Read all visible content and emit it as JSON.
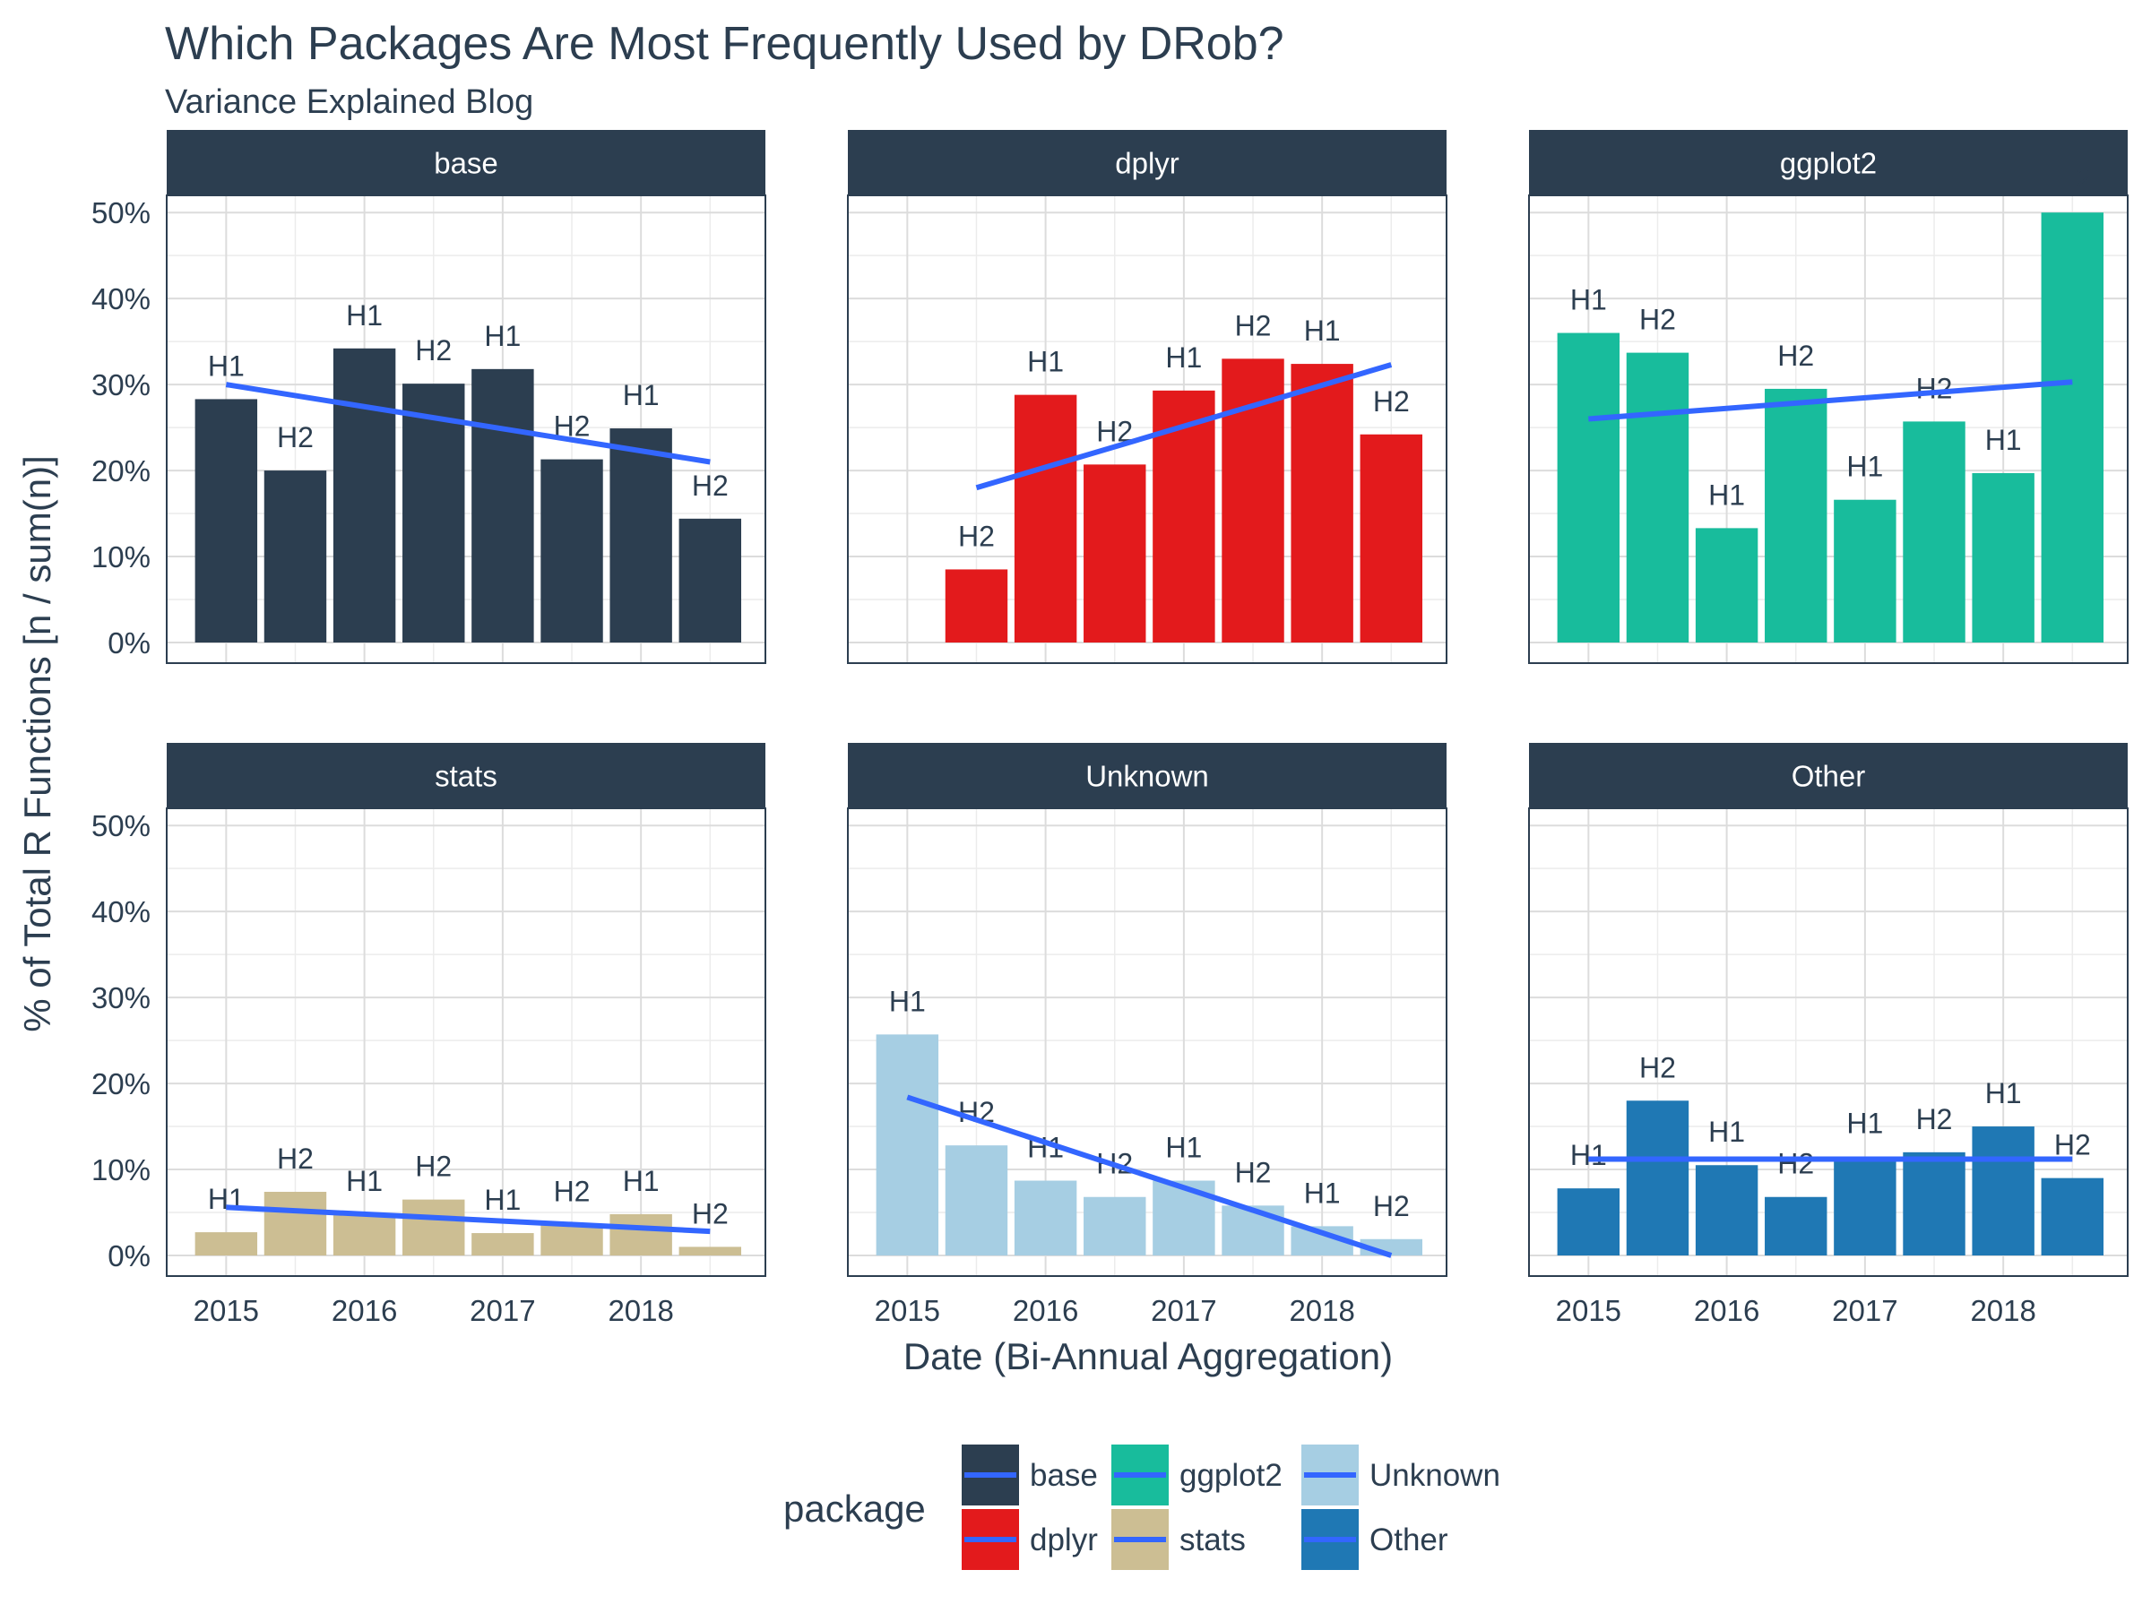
{
  "chart_data": {
    "type": "bar",
    "title": "Which Packages Are Most Frequently Used by DRob?",
    "subtitle": "Variance Explained Blog",
    "xlabel": "Date (Bi-Annual Aggregation)",
    "ylabel": "% of Total R Functions [n / sum(n)]",
    "ylim": [
      0,
      0.52
    ],
    "y_ticks": [
      0,
      0.1,
      0.2,
      0.3,
      0.4,
      0.5
    ],
    "y_tick_labels": [
      "0%",
      "10%",
      "20%",
      "30%",
      "40%",
      "50%"
    ],
    "x_ticks": [
      2015,
      2016,
      2017,
      2018
    ],
    "x_tick_labels": [
      "2015",
      "2016",
      "2017",
      "2018"
    ],
    "xlim": [
      2014.57,
      2018.9
    ],
    "grid": true,
    "categories": [
      "2015 H1",
      "2015 H2",
      "2016 H1",
      "2016 H2",
      "2017 H1",
      "2017 H2",
      "2018 H1",
      "2018 H2"
    ],
    "x": [
      2015.0,
      2015.5,
      2016.0,
      2016.5,
      2017.0,
      2017.5,
      2018.0,
      2018.5
    ],
    "half_labels": [
      "H1",
      "H2",
      "H1",
      "H2",
      "H1",
      "H2",
      "H1",
      "H2"
    ],
    "bar_width": 0.45,
    "trend_color": "#3366ff",
    "series": [
      {
        "name": "base",
        "color": "#2c3e50",
        "values": [
          0.283,
          0.2,
          0.342,
          0.301,
          0.318,
          0.213,
          0.249,
          0.144
        ],
        "trend": [
          0.3,
          0.21
        ]
      },
      {
        "name": "dplyr",
        "color": "#e31a1c",
        "values": [
          null,
          0.085,
          0.288,
          0.207,
          0.293,
          0.33,
          0.324,
          0.242
        ],
        "trend": [
          0.18,
          0.323
        ]
      },
      {
        "name": "ggplot2",
        "color": "#18bc9c",
        "values": [
          0.36,
          0.337,
          0.133,
          0.295,
          0.166,
          0.257,
          0.197,
          0.5
        ],
        "trend": [
          0.26,
          0.303
        ]
      },
      {
        "name": "stats",
        "color": "#ccbe93",
        "values": [
          0.027,
          0.074,
          0.048,
          0.065,
          0.026,
          0.036,
          0.048,
          0.01
        ],
        "trend": [
          0.056,
          0.028
        ]
      },
      {
        "name": "Unknown",
        "color": "#a6cee3",
        "values": [
          0.257,
          0.128,
          0.087,
          0.068,
          0.087,
          0.058,
          0.034,
          0.019
        ],
        "trend": [
          0.184,
          0.0
        ]
      },
      {
        "name": "Other",
        "color": "#1f78b4",
        "values": [
          0.078,
          0.18,
          0.105,
          0.068,
          0.115,
          0.12,
          0.15,
          0.09
        ],
        "trend": [
          0.112,
          0.112
        ]
      }
    ],
    "legend": {
      "title": "package",
      "position": "bottom"
    }
  }
}
